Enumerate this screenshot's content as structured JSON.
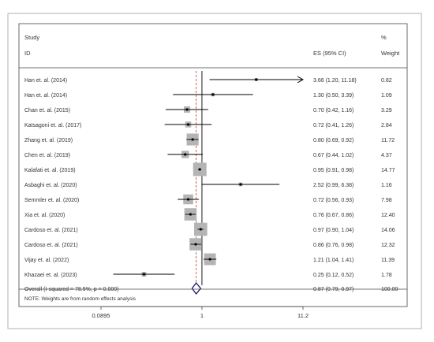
{
  "chart_data": {
    "type": "forest",
    "header": {
      "study_line1": "Study",
      "study_line2": "ID",
      "es_label": "ES (95% CI)",
      "weight_line1": "%",
      "weight_line2": "Weight"
    },
    "scale": "log",
    "xlim": [
      0.0895,
      11.2
    ],
    "x_ticks": [
      {
        "value": 0.0895,
        "label": "0.0895"
      },
      {
        "value": 1,
        "label": "1"
      },
      {
        "value": 11.2,
        "label": "11.2"
      }
    ],
    "null_value": 1,
    "studies": [
      {
        "label": "Han et. al. (2014)",
        "es": 3.66,
        "lo": 1.2,
        "hi": 11.18,
        "ci_text": "3.66 (1.20, 11.18)",
        "weight": 0.82,
        "weight_text": "0.82",
        "arrow": true
      },
      {
        "label": "Han et. al. (2014)",
        "es": 1.3,
        "lo": 0.5,
        "hi": 3.39,
        "ci_text": "1.30 (0.50, 3.39)",
        "weight": 1.09,
        "weight_text": "1.09"
      },
      {
        "label": "Chan et. al. (2015)",
        "es": 0.7,
        "lo": 0.42,
        "hi": 1.16,
        "ci_text": "0.70 (0.42, 1.16)",
        "weight": 3.29,
        "weight_text": "3.29"
      },
      {
        "label": "Katsagoni et. al. (2017)",
        "es": 0.72,
        "lo": 0.41,
        "hi": 1.26,
        "ci_text": "0.72 (0.41, 1.26)",
        "weight": 2.84,
        "weight_text": "2.84"
      },
      {
        "label": "Zhang et. al. (2019)",
        "es": 0.8,
        "lo": 0.69,
        "hi": 0.92,
        "ci_text": "0.80 (0.69, 0.92)",
        "weight": 11.72,
        "weight_text": "11.72"
      },
      {
        "label": "Chen et. al. (2019)",
        "es": 0.67,
        "lo": 0.44,
        "hi": 1.02,
        "ci_text": "0.67 (0.44, 1.02)",
        "weight": 4.37,
        "weight_text": "4.37"
      },
      {
        "label": "Kalafati et. al. (2019)",
        "es": 0.95,
        "lo": 0.91,
        "hi": 0.98,
        "ci_text": "0.95 (0.91, 0.98)",
        "weight": 14.77,
        "weight_text": "14.77"
      },
      {
        "label": "Asbaghi et. al. (2020)",
        "es": 2.52,
        "lo": 0.99,
        "hi": 6.38,
        "ci_text": "2.52 (0.99, 6.38)",
        "weight": 1.16,
        "weight_text": "1.16"
      },
      {
        "label": "Semmler et. al. (2020)",
        "es": 0.72,
        "lo": 0.56,
        "hi": 0.93,
        "ci_text": "0.72 (0.56, 0.93)",
        "weight": 7.98,
        "weight_text": "7.98"
      },
      {
        "label": "Xia et. al. (2020)",
        "es": 0.76,
        "lo": 0.67,
        "hi": 0.86,
        "ci_text": "0.76 (0.67, 0.86)",
        "weight": 12.4,
        "weight_text": "12.40"
      },
      {
        "label": "Cardoso et. al. (2021)",
        "es": 0.97,
        "lo": 0.9,
        "hi": 1.04,
        "ci_text": "0.97 (0.90, 1.04)",
        "weight": 14.06,
        "weight_text": "14.06"
      },
      {
        "label": "Cardoso et. al. (2021)",
        "es": 0.86,
        "lo": 0.76,
        "hi": 0.98,
        "ci_text": "0.86 (0.76, 0.98)",
        "weight": 12.32,
        "weight_text": "12.32"
      },
      {
        "label": "Vijay et. al. (2022)",
        "es": 1.21,
        "lo": 1.04,
        "hi": 1.41,
        "ci_text": "1.21 (1.04, 1.41)",
        "weight": 11.39,
        "weight_text": "11.39"
      },
      {
        "label": "Khazaei et. al. (2023)",
        "es": 0.25,
        "lo": 0.12,
        "hi": 0.52,
        "ci_text": "0.25 (0.12, 0.52)",
        "weight": 1.78,
        "weight_text": "1.78"
      }
    ],
    "overall": {
      "label": "Overall  (I-squared = 78.5%, p = 0.000)",
      "es": 0.87,
      "lo": 0.79,
      "hi": 0.97,
      "ci_text": "0.87 (0.79, 0.97)",
      "weight_text": "100.00"
    },
    "note": "NOTE: Weights are from random effects analysis",
    "colors": {
      "box": "#b4b4b4",
      "line": "#000000",
      "null_line": "#000000",
      "overall_line": "#c0392b",
      "diamond": "#1b1464",
      "frame": "#b0b0b0"
    }
  }
}
